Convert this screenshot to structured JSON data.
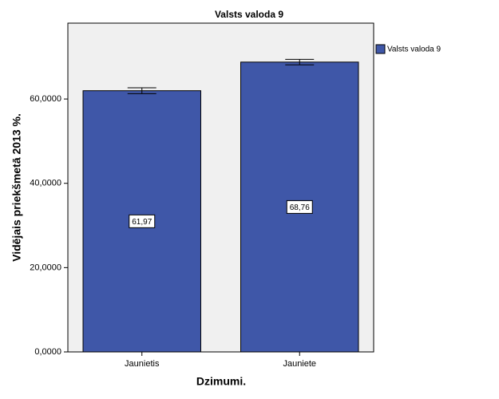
{
  "chart_data": {
    "type": "bar",
    "title": "Valsts valoda 9",
    "x_label": "Dzimumi.",
    "y_label": "Vidējais priekšmetā 2013 %.",
    "categories": [
      "Jaunietis",
      "Jauniete"
    ],
    "series": [
      {
        "name": "Valsts valoda 9",
        "color": "#3f57a8",
        "values": [
          61.97,
          68.76
        ],
        "value_labels": [
          "61,97",
          "68,76"
        ],
        "errors": [
          0.7,
          0.65
        ]
      }
    ],
    "ylim": [
      0,
      78
    ],
    "yticks": [
      {
        "value": 0,
        "label": "0,0000"
      },
      {
        "value": 20,
        "label": "20,0000"
      },
      {
        "value": 40,
        "label": "40,0000"
      },
      {
        "value": 60,
        "label": "60,0000"
      }
    ],
    "legend": "right"
  }
}
